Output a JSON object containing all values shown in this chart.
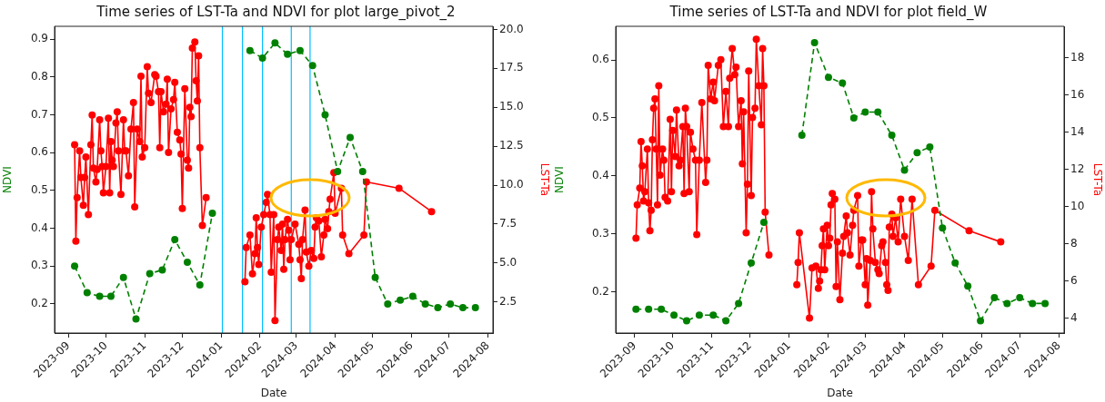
{
  "chart_data": [
    {
      "type": "line",
      "title": "Time series of LST-Ta and NDVI for plot large_pivot_2",
      "xlabel": "Date",
      "ylabel": "NDVI",
      "y2label": "LST-Ta",
      "marker": "circle",
      "xlim": [
        "2023-08-21",
        "2024-08-05"
      ],
      "xticks": [
        "2023-09",
        "2023-10",
        "2023-11",
        "2023-12",
        "2024-01",
        "2024-02",
        "2024-03",
        "2024-04",
        "2024-05",
        "2024-06",
        "2024-07",
        "2024-08"
      ],
      "ylim": [
        0.123,
        0.934
      ],
      "yticks": [
        0.2,
        0.3,
        0.4,
        0.5,
        0.6,
        0.7,
        0.8,
        0.9
      ],
      "y2lim": [
        0.5,
        20.2
      ],
      "y2ticks": [
        {
          "value": 2.5,
          "label": "2.5"
        },
        {
          "value": 5,
          "label": "5.0"
        },
        {
          "value": 7.5,
          "label": "7.5"
        },
        {
          "value": 10,
          "label": "10.0"
        },
        {
          "value": 12.5,
          "label": "12.5"
        },
        {
          "value": 15,
          "label": "15.0"
        },
        {
          "value": 17.5,
          "label": "17.5"
        },
        {
          "value": 20,
          "label": "20.0"
        }
      ],
      "ref_lines": [
        {
          "axis": "x",
          "value": "2024-01-02",
          "color": "#00bfff"
        },
        {
          "axis": "x",
          "value": "2024-01-18",
          "color": "#00bfff"
        },
        {
          "axis": "x",
          "value": "2024-02-03",
          "color": "#00bfff"
        },
        {
          "axis": "x",
          "value": "2024-02-26",
          "color": "#00bfff"
        },
        {
          "axis": "x",
          "value": "2024-03-12",
          "color": "#00bfff"
        }
      ],
      "series": [
        {
          "color": "#008000",
          "line_style": "dashed",
          "x": [
            "2023-09-06",
            "2023-09-16",
            "2023-09-26",
            "2023-10-05",
            "2023-10-15",
            "2023-10-25",
            "2023-11-05",
            "2023-11-15",
            "2023-11-25",
            "2023-12-05",
            "2023-12-15",
            "2023-12-25",
            "2024-01-09",
            "2024-01-24",
            "2024-02-03",
            "2024-02-13",
            "2024-02-23",
            "2024-03-04",
            "2024-03-14",
            "2024-03-24",
            "2024-04-03",
            "2024-04-13",
            "2024-04-23",
            "2024-05-03",
            "2024-05-13",
            "2024-05-23",
            "2024-06-02",
            "2024-06-12",
            "2024-06-22",
            "2024-07-02",
            "2024-07-12",
            "2024-07-22"
          ],
          "values": [
            0.3,
            0.23,
            0.22,
            0.22,
            0.27,
            0.16,
            0.28,
            0.29,
            0.37,
            0.31,
            0.25,
            0.44,
            null,
            0.87,
            0.85,
            0.89,
            0.86,
            0.87,
            0.83,
            0.7,
            0.55,
            0.64,
            0.55,
            0.27,
            0.2,
            0.21,
            0.22,
            0.2,
            0.19,
            0.2,
            0.19,
            0.19
          ]
        },
        {
          "color": "#ff0000",
          "line_style": "solid",
          "axis": "y2",
          "x": [
            "2023-09-06",
            "2023-09-07",
            "2023-09-08",
            "2023-09-10",
            "2023-09-11",
            "2023-09-13",
            "2023-09-14",
            "2023-09-15",
            "2023-09-17",
            "2023-09-19",
            "2023-09-20",
            "2023-09-21",
            "2023-09-23",
            "2023-09-24",
            "2023-09-26",
            "2023-09-27",
            "2023-09-28",
            "2023-09-29",
            "2023-10-01",
            "2023-10-03",
            "2023-10-04",
            "2023-10-05",
            "2023-10-06",
            "2023-10-07",
            "2023-10-09",
            "2023-10-10",
            "2023-10-11",
            "2023-10-13",
            "2023-10-15",
            "2023-10-16",
            "2023-10-17",
            "2023-10-19",
            "2023-10-21",
            "2023-10-23",
            "2023-10-24",
            "2023-10-26",
            "2023-10-28",
            "2023-10-29",
            "2023-10-30",
            "2023-11-01",
            "2023-11-03",
            "2023-11-04",
            "2023-11-06",
            "2023-11-09",
            "2023-11-10",
            "2023-11-12",
            "2023-11-13",
            "2023-11-14",
            "2023-11-16",
            "2023-11-18",
            "2023-11-19",
            "2023-11-20",
            "2023-11-22",
            "2023-11-24",
            "2023-11-25",
            "2023-11-27",
            "2023-11-29",
            "2023-11-30",
            "2023-12-01",
            "2023-12-03",
            "2023-12-05",
            "2023-12-06",
            "2023-12-07",
            "2023-12-08",
            "2023-12-09",
            "2023-12-11",
            "2023-12-12",
            "2023-12-13",
            "2023-12-14",
            "2023-12-15",
            "2023-12-17",
            "2023-12-20",
            "2024-01-05",
            "2024-01-20",
            "2024-01-21",
            "2024-01-24",
            "2024-01-26",
            "2024-01-28",
            "2024-01-29",
            "2024-01-30",
            "2024-01-31",
            "2024-02-02",
            "2024-02-04",
            "2024-02-06",
            "2024-02-07",
            "2024-02-09",
            "2024-02-10",
            "2024-02-12",
            "2024-02-13",
            "2024-02-15",
            "2024-02-16",
            "2024-02-18",
            "2024-02-19",
            "2024-02-20",
            "2024-02-21",
            "2024-02-23",
            "2024-02-24",
            "2024-02-25",
            "2024-02-26",
            "2024-02-29",
            "2024-03-03",
            "2024-03-04",
            "2024-03-05",
            "2024-03-06",
            "2024-03-08",
            "2024-03-09",
            "2024-03-11",
            "2024-03-13",
            "2024-03-15",
            "2024-03-16",
            "2024-03-17",
            "2024-03-19",
            "2024-03-21",
            "2024-03-23",
            "2024-03-24",
            "2024-03-26",
            "2024-03-27",
            "2024-03-28",
            "2024-03-31",
            "2024-04-01",
            "2024-04-06",
            "2024-04-07",
            "2024-04-12",
            "2024-04-24",
            "2024-04-26",
            "2024-05-22",
            "2024-06-17"
          ],
          "values": [
            12.6,
            6.4,
            9.2,
            12.2,
            10.5,
            8.7,
            10.5,
            11.8,
            8.1,
            12.6,
            14.5,
            11.1,
            10.2,
            11.0,
            14.2,
            12.2,
            11.2,
            9.5,
            11.2,
            14.3,
            9.5,
            12.8,
            11.6,
            11.2,
            14.0,
            14.7,
            12.2,
            9.4,
            14.2,
            12.2,
            12.2,
            10.6,
            13.6,
            15.3,
            8.6,
            13.6,
            12.8,
            17.0,
            11.8,
            12.4,
            17.6,
            15.9,
            15.3,
            17.1,
            17.0,
            16.0,
            12.4,
            16.0,
            14.7,
            15.2,
            16.8,
            12.1,
            14.9,
            15.5,
            16.6,
            13.4,
            12.9,
            12.0,
            8.5,
            16.2,
            11.6,
            11.1,
            15.0,
            14.4,
            18.8,
            19.2,
            16.7,
            15.4,
            18.3,
            12.4,
            7.4,
            9.2,
            null,
            3.8,
            6.0,
            6.8,
            4.3,
            5.6,
            7.9,
            6.0,
            4.9,
            7.3,
            8.1,
            8.9,
            9.4,
            8.1,
            4.4,
            8.1,
            1.3,
            6.5,
            7.3,
            5.8,
            7.5,
            4.6,
            6.5,
            7.8,
            7.1,
            5.2,
            6.5,
            7.5,
            6.2,
            5.2,
            4.0,
            6.5,
            8.4,
            5.7,
            4.8,
            5.8,
            5.3,
            7.3,
            7.9,
            7.7,
            5.4,
            6.8,
            7.8,
            7.2,
            8.3,
            9.1,
            10.8,
            8.2,
            9.8,
            6.8,
            5.6,
            6.8,
            10.2,
            9.8,
            8.3
          ]
        }
      ]
    },
    {
      "type": "line",
      "title": "Time series of LST-Ta and NDVI for plot field_W",
      "xlabel": "Date",
      "ylabel": "NDVI",
      "y2label": "LST-Ta",
      "marker": "circle",
      "xlim": [
        "2023-08-17",
        "2024-08-05"
      ],
      "xticks": [
        "2023-09",
        "2023-10",
        "2023-11",
        "2023-12",
        "2024-01",
        "2024-02",
        "2024-03",
        "2024-04",
        "2024-05",
        "2024-06",
        "2024-07",
        "2024-08"
      ],
      "ylim": [
        0.129,
        0.658
      ],
      "yticks": [
        0.2,
        0.3,
        0.4,
        0.5,
        0.6
      ],
      "y2lim": [
        3.2,
        19.7
      ],
      "y2ticks": [
        4,
        6,
        8,
        10,
        12,
        14,
        16,
        18
      ],
      "series": [
        {
          "color": "#008000",
          "line_style": "dashed",
          "x": [
            "2023-09-02",
            "2023-09-12",
            "2023-09-22",
            "2023-10-02",
            "2023-10-12",
            "2023-10-22",
            "2023-11-02",
            "2023-11-12",
            "2023-11-22",
            "2023-12-02",
            "2023-12-12",
            "2023-12-27",
            "2024-01-11",
            "2024-01-21",
            "2024-02-01",
            "2024-02-12",
            "2024-02-21",
            "2024-03-01",
            "2024-03-11",
            "2024-03-22",
            "2024-04-01",
            "2024-04-11",
            "2024-04-21",
            "2024-05-01",
            "2024-05-11",
            "2024-05-21",
            "2024-05-31",
            "2024-06-11",
            "2024-06-21",
            "2024-07-01",
            "2024-07-11",
            "2024-07-21"
          ],
          "values": [
            0.17,
            0.17,
            0.17,
            0.16,
            0.15,
            0.16,
            0.16,
            0.15,
            0.18,
            0.25,
            0.32,
            null,
            0.47,
            0.63,
            0.57,
            0.56,
            0.5,
            0.51,
            0.51,
            0.47,
            0.41,
            0.44,
            0.45,
            0.31,
            0.25,
            0.21,
            0.15,
            0.19,
            0.18,
            0.19,
            0.18,
            0.18
          ]
        },
        {
          "color": "#ff0000",
          "line_style": "solid",
          "axis": "y2",
          "x": [
            "2023-09-02",
            "2023-09-03",
            "2023-09-05",
            "2023-09-06",
            "2023-09-07",
            "2023-09-08",
            "2023-09-09",
            "2023-09-11",
            "2023-09-12",
            "2023-09-13",
            "2023-09-14",
            "2023-09-15",
            "2023-09-16",
            "2023-09-17",
            "2023-09-18",
            "2023-09-19",
            "2023-09-20",
            "2023-09-21",
            "2023-09-23",
            "2023-09-24",
            "2023-09-25",
            "2023-09-27",
            "2023-09-29",
            "2023-09-30",
            "2023-10-01",
            "2023-10-03",
            "2023-10-04",
            "2023-10-06",
            "2023-10-07",
            "2023-10-09",
            "2023-10-10",
            "2023-10-11",
            "2023-10-12",
            "2023-10-14",
            "2023-10-15",
            "2023-10-17",
            "2023-10-19",
            "2023-10-20",
            "2023-10-22",
            "2023-10-24",
            "2023-10-27",
            "2023-10-28",
            "2023-10-29",
            "2023-10-31",
            "2023-11-02",
            "2023-11-03",
            "2023-11-06",
            "2023-11-08",
            "2023-11-10",
            "2023-11-12",
            "2023-11-14",
            "2023-11-15",
            "2023-11-17",
            "2023-11-19",
            "2023-11-20",
            "2023-11-22",
            "2023-11-24",
            "2023-11-25",
            "2023-11-26",
            "2023-11-28",
            "2023-11-29",
            "2023-11-30",
            "2023-12-02",
            "2023-12-03",
            "2023-12-05",
            "2023-12-06",
            "2023-12-08",
            "2023-12-10",
            "2023-12-11",
            "2023-12-12",
            "2023-12-13",
            "2023-12-16",
            "2024-01-01",
            "2024-01-07",
            "2024-01-08",
            "2024-01-09",
            "2024-01-17",
            "2024-01-19",
            "2024-01-22",
            "2024-01-24",
            "2024-01-25",
            "2024-01-26",
            "2024-01-27",
            "2024-01-28",
            "2024-01-29",
            "2024-01-31",
            "2024-02-01",
            "2024-02-02",
            "2024-02-03",
            "2024-02-04",
            "2024-02-06",
            "2024-02-07",
            "2024-02-08",
            "2024-02-10",
            "2024-02-12",
            "2024-02-13",
            "2024-02-15",
            "2024-02-16",
            "2024-02-18",
            "2024-02-20",
            "2024-02-21",
            "2024-02-24",
            "2024-02-25",
            "2024-02-27",
            "2024-02-28",
            "2024-03-01",
            "2024-03-02",
            "2024-03-03",
            "2024-03-05",
            "2024-03-06",
            "2024-03-07",
            "2024-03-09",
            "2024-03-11",
            "2024-03-12",
            "2024-03-14",
            "2024-03-15",
            "2024-03-17",
            "2024-03-18",
            "2024-03-19",
            "2024-03-20",
            "2024-03-22",
            "2024-03-23",
            "2024-03-25",
            "2024-03-27",
            "2024-03-29",
            "2024-04-01",
            "2024-04-04",
            "2024-04-07",
            "2024-04-12",
            "2024-04-22",
            "2024-04-25",
            "2024-05-22",
            "2024-06-16"
          ],
          "values": [
            8.3,
            10.1,
            11.0,
            13.5,
            12.2,
            10.3,
            10.8,
            13.1,
            10.2,
            8.7,
            9.8,
            13.6,
            15.3,
            15.8,
            13.1,
            10.1,
            16.5,
            11.7,
            13.1,
            12.5,
            10.5,
            10.3,
            14.7,
            10.8,
            14.1,
            12.7,
            15.2,
            12.2,
            12.5,
            14.3,
            10.7,
            15.3,
            14.3,
            10.8,
            14.0,
            13.1,
            12.5,
            8.5,
            12.5,
            15.6,
            11.3,
            12.5,
            17.6,
            15.8,
            16.7,
            15.7,
            17.6,
            17.9,
            14.3,
            16.2,
            14.3,
            16.9,
            18.5,
            17.1,
            17.5,
            14.3,
            15.7,
            12.3,
            15.1,
            8.6,
            11.2,
            17.3,
            10.6,
            14.8,
            15.3,
            19.0,
            16.5,
            14.4,
            18.5,
            16.5,
            9.7,
            7.4,
            null,
            5.8,
            7.0,
            8.6,
            4.0,
            6.7,
            6.8,
            5.6,
            6.0,
            6.6,
            7.9,
            8.8,
            6.6,
            9.0,
            7.9,
            8.3,
            10.1,
            10.7,
            10.4,
            5.7,
            8.1,
            5.0,
            7.5,
            8.4,
            9.5,
            8.6,
            7.4,
            9.0,
            9.8,
            10.6,
            6.8,
            8.2,
            8.2,
            5.8,
            7.2,
            4.7,
            7.1,
            10.8,
            8.8,
            7.0,
            6.6,
            6.4,
            7.9,
            8.1,
            7.0,
            5.8,
            5.5,
            8.9,
            9.6,
            8.4,
            9.4,
            8.1,
            10.4,
            8.4,
            7.1,
            10.4,
            5.8,
            6.8,
            9.8,
            8.7,
            8.1
          ]
        }
      ]
    }
  ]
}
